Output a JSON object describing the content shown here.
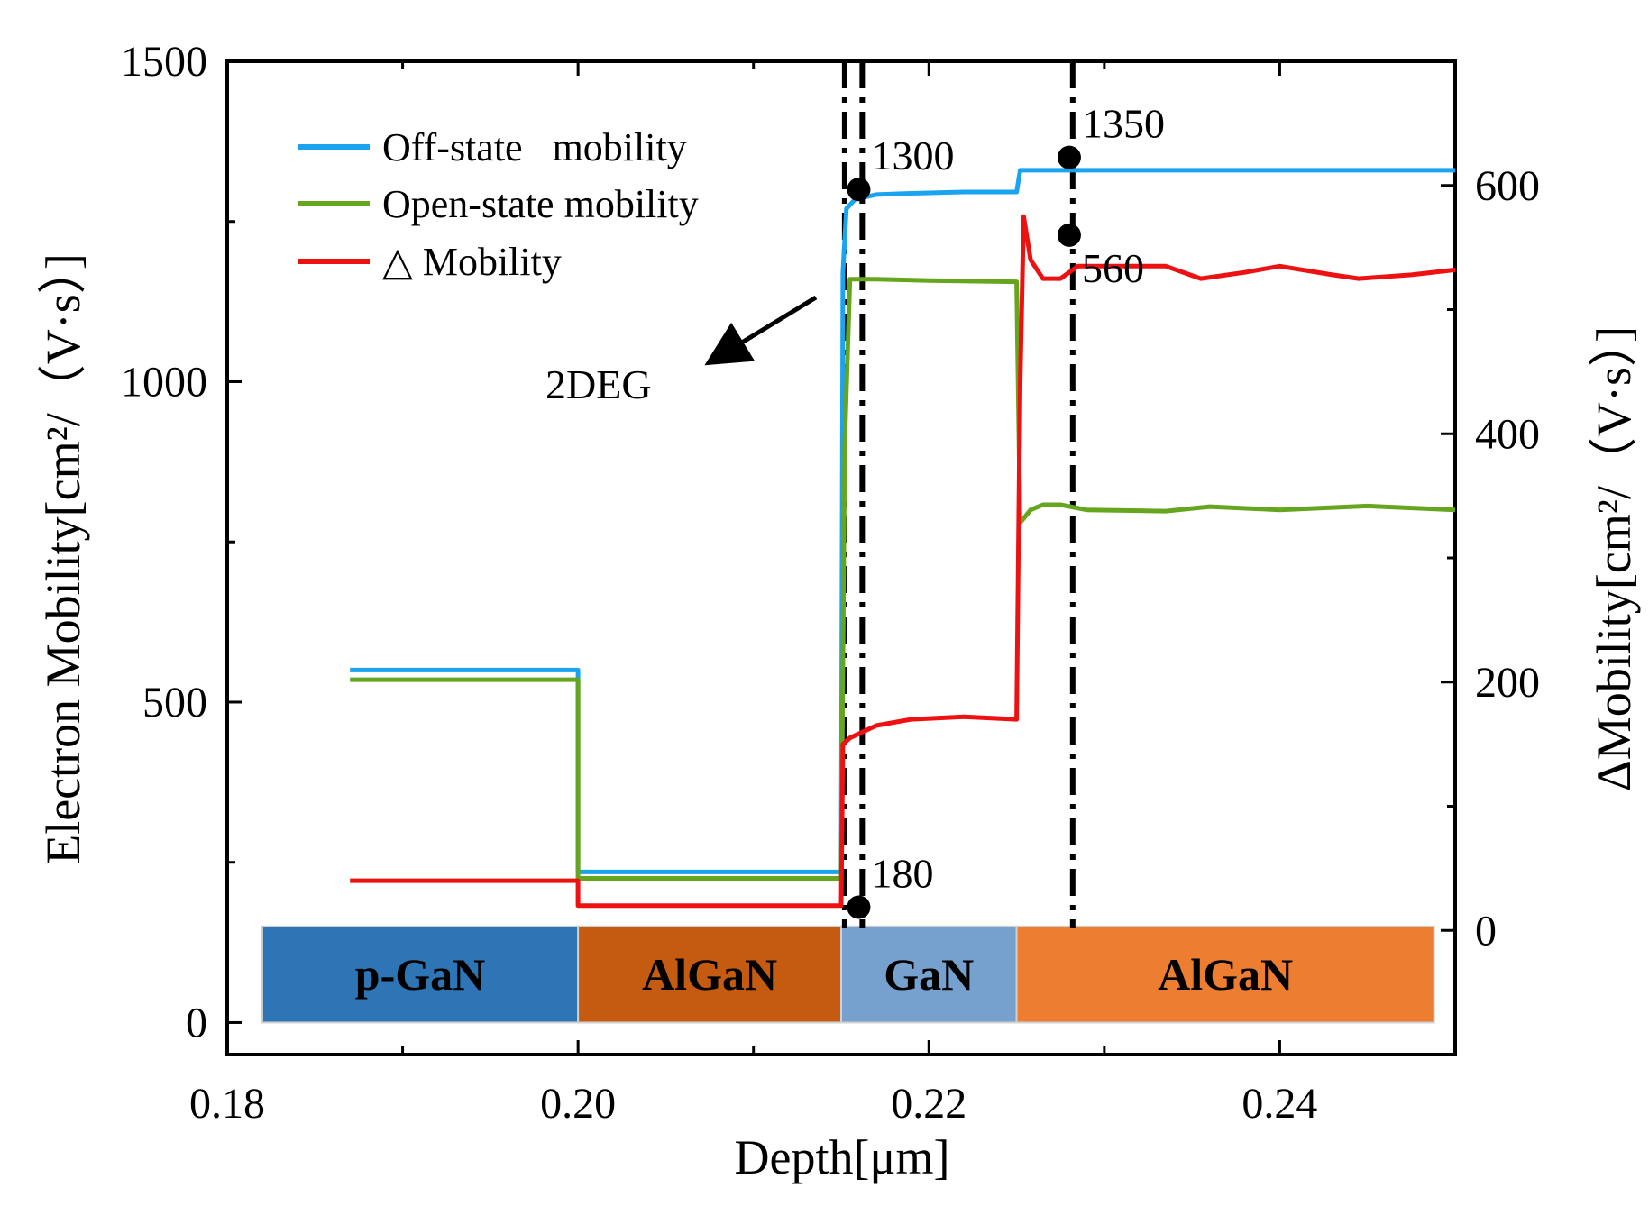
{
  "chart_data": {
    "type": "line",
    "xlabel": "Depth[μm]",
    "ylabel_left": "Electron Mobility[cm²/（V·s）]",
    "ylabel_right": "ΔMobility[cm²/（V·s）]",
    "xlim": [
      0.18,
      0.25
    ],
    "ylim_left": [
      -50,
      1500
    ],
    "ylim_right": [
      -100,
      700
    ],
    "x_ticks": [
      0.18,
      0.2,
      0.22,
      0.24
    ],
    "x_tick_labels": [
      "0.18",
      "0.20",
      "0.22",
      "0.24"
    ],
    "x_minor_ticks": [
      0.19,
      0.21,
      0.23,
      0.25
    ],
    "y_left_ticks": [
      0,
      500,
      1000,
      1500
    ],
    "y_left_tick_labels": [
      "0",
      "500",
      "1000",
      "1500"
    ],
    "y_left_minor_ticks": [
      250,
      750,
      1250
    ],
    "y_right_ticks": [
      0,
      200,
      400,
      600
    ],
    "y_right_tick_labels": [
      "0",
      "200",
      "400",
      "600"
    ],
    "y_right_minor_ticks": [
      100,
      300,
      500
    ],
    "series": [
      {
        "name": "Off-state   mobility",
        "color": "#1aa3ee",
        "axis": "left",
        "points": [
          [
            0.187,
            550
          ],
          [
            0.2,
            550
          ],
          [
            0.2,
            235
          ],
          [
            0.215,
            235
          ],
          [
            0.2151,
            1170
          ],
          [
            0.2153,
            1270
          ],
          [
            0.2158,
            1285
          ],
          [
            0.217,
            1292
          ],
          [
            0.219,
            1294
          ],
          [
            0.222,
            1296
          ],
          [
            0.225,
            1296
          ],
          [
            0.2252,
            1330
          ],
          [
            0.25,
            1330
          ]
        ]
      },
      {
        "name": "Open-state mobility",
        "color": "#66a61e",
        "axis": "left",
        "points": [
          [
            0.187,
            535
          ],
          [
            0.2,
            535
          ],
          [
            0.2,
            225
          ],
          [
            0.215,
            225
          ],
          [
            0.2152,
            900
          ],
          [
            0.2155,
            1160
          ],
          [
            0.217,
            1160
          ],
          [
            0.22,
            1158
          ],
          [
            0.225,
            1156
          ],
          [
            0.2252,
            780
          ],
          [
            0.2258,
            800
          ],
          [
            0.2265,
            808
          ],
          [
            0.2275,
            808
          ],
          [
            0.229,
            800
          ],
          [
            0.2335,
            798
          ],
          [
            0.236,
            805
          ],
          [
            0.24,
            800
          ],
          [
            0.245,
            806
          ],
          [
            0.25,
            800
          ]
        ]
      },
      {
        "name": "△ Mobility",
        "color": "#ee1111",
        "axis": "right",
        "points": [
          [
            0.187,
            40
          ],
          [
            0.2,
            40
          ],
          [
            0.2,
            20
          ],
          [
            0.215,
            20
          ],
          [
            0.2151,
            150
          ],
          [
            0.2155,
            155
          ],
          [
            0.217,
            165
          ],
          [
            0.219,
            170
          ],
          [
            0.222,
            172
          ],
          [
            0.225,
            170
          ],
          [
            0.2252,
            440
          ],
          [
            0.2254,
            575
          ],
          [
            0.2258,
            540
          ],
          [
            0.2265,
            525
          ],
          [
            0.2275,
            525
          ],
          [
            0.2285,
            535
          ],
          [
            0.2295,
            535
          ],
          [
            0.2335,
            535
          ],
          [
            0.2355,
            525
          ],
          [
            0.238,
            530
          ],
          [
            0.24,
            535
          ],
          [
            0.243,
            528
          ],
          [
            0.2445,
            525
          ],
          [
            0.2475,
            528
          ],
          [
            0.25,
            532
          ]
        ]
      }
    ],
    "markers": [
      {
        "x": 0.216,
        "y": 1300,
        "axis": "left",
        "label": "1300",
        "label_pos": "above-right"
      },
      {
        "x": 0.228,
        "y": 1350,
        "axis": "left",
        "label": "1350",
        "label_pos": "above-right"
      },
      {
        "x": 0.216,
        "y": 180,
        "axis": "left",
        "label": "180",
        "label_pos": "above-right"
      },
      {
        "x": 0.228,
        "y": 560,
        "axis": "right",
        "label": "560",
        "label_pos": "below-right"
      }
    ],
    "vertical_lines": [
      {
        "x": 0.2152,
        "style": "dash-dot"
      },
      {
        "x": 0.2162,
        "style": "dash-dot"
      },
      {
        "x": 0.2282,
        "style": "dash-dot"
      }
    ],
    "annotations": [
      {
        "text": "2DEG",
        "arrow_to_x": 0.2175,
        "arrow_to_y": 1010
      }
    ],
    "layers": [
      {
        "name": "p-GaN",
        "x_start": 0.182,
        "x_end": 0.2,
        "color": "#2e75b6"
      },
      {
        "name": "AlGaN",
        "x_start": 0.2,
        "x_end": 0.215,
        "color": "#c55a11"
      },
      {
        "name": "GaN",
        "x_start": 0.215,
        "x_end": 0.225,
        "color": "#76a1cf"
      },
      {
        "name": "AlGaN",
        "x_start": 0.225,
        "x_end": 0.2488,
        "color": "#ed7d31"
      }
    ],
    "layer_band_y": [
      0,
      150
    ],
    "legend_placement": "top-left"
  }
}
